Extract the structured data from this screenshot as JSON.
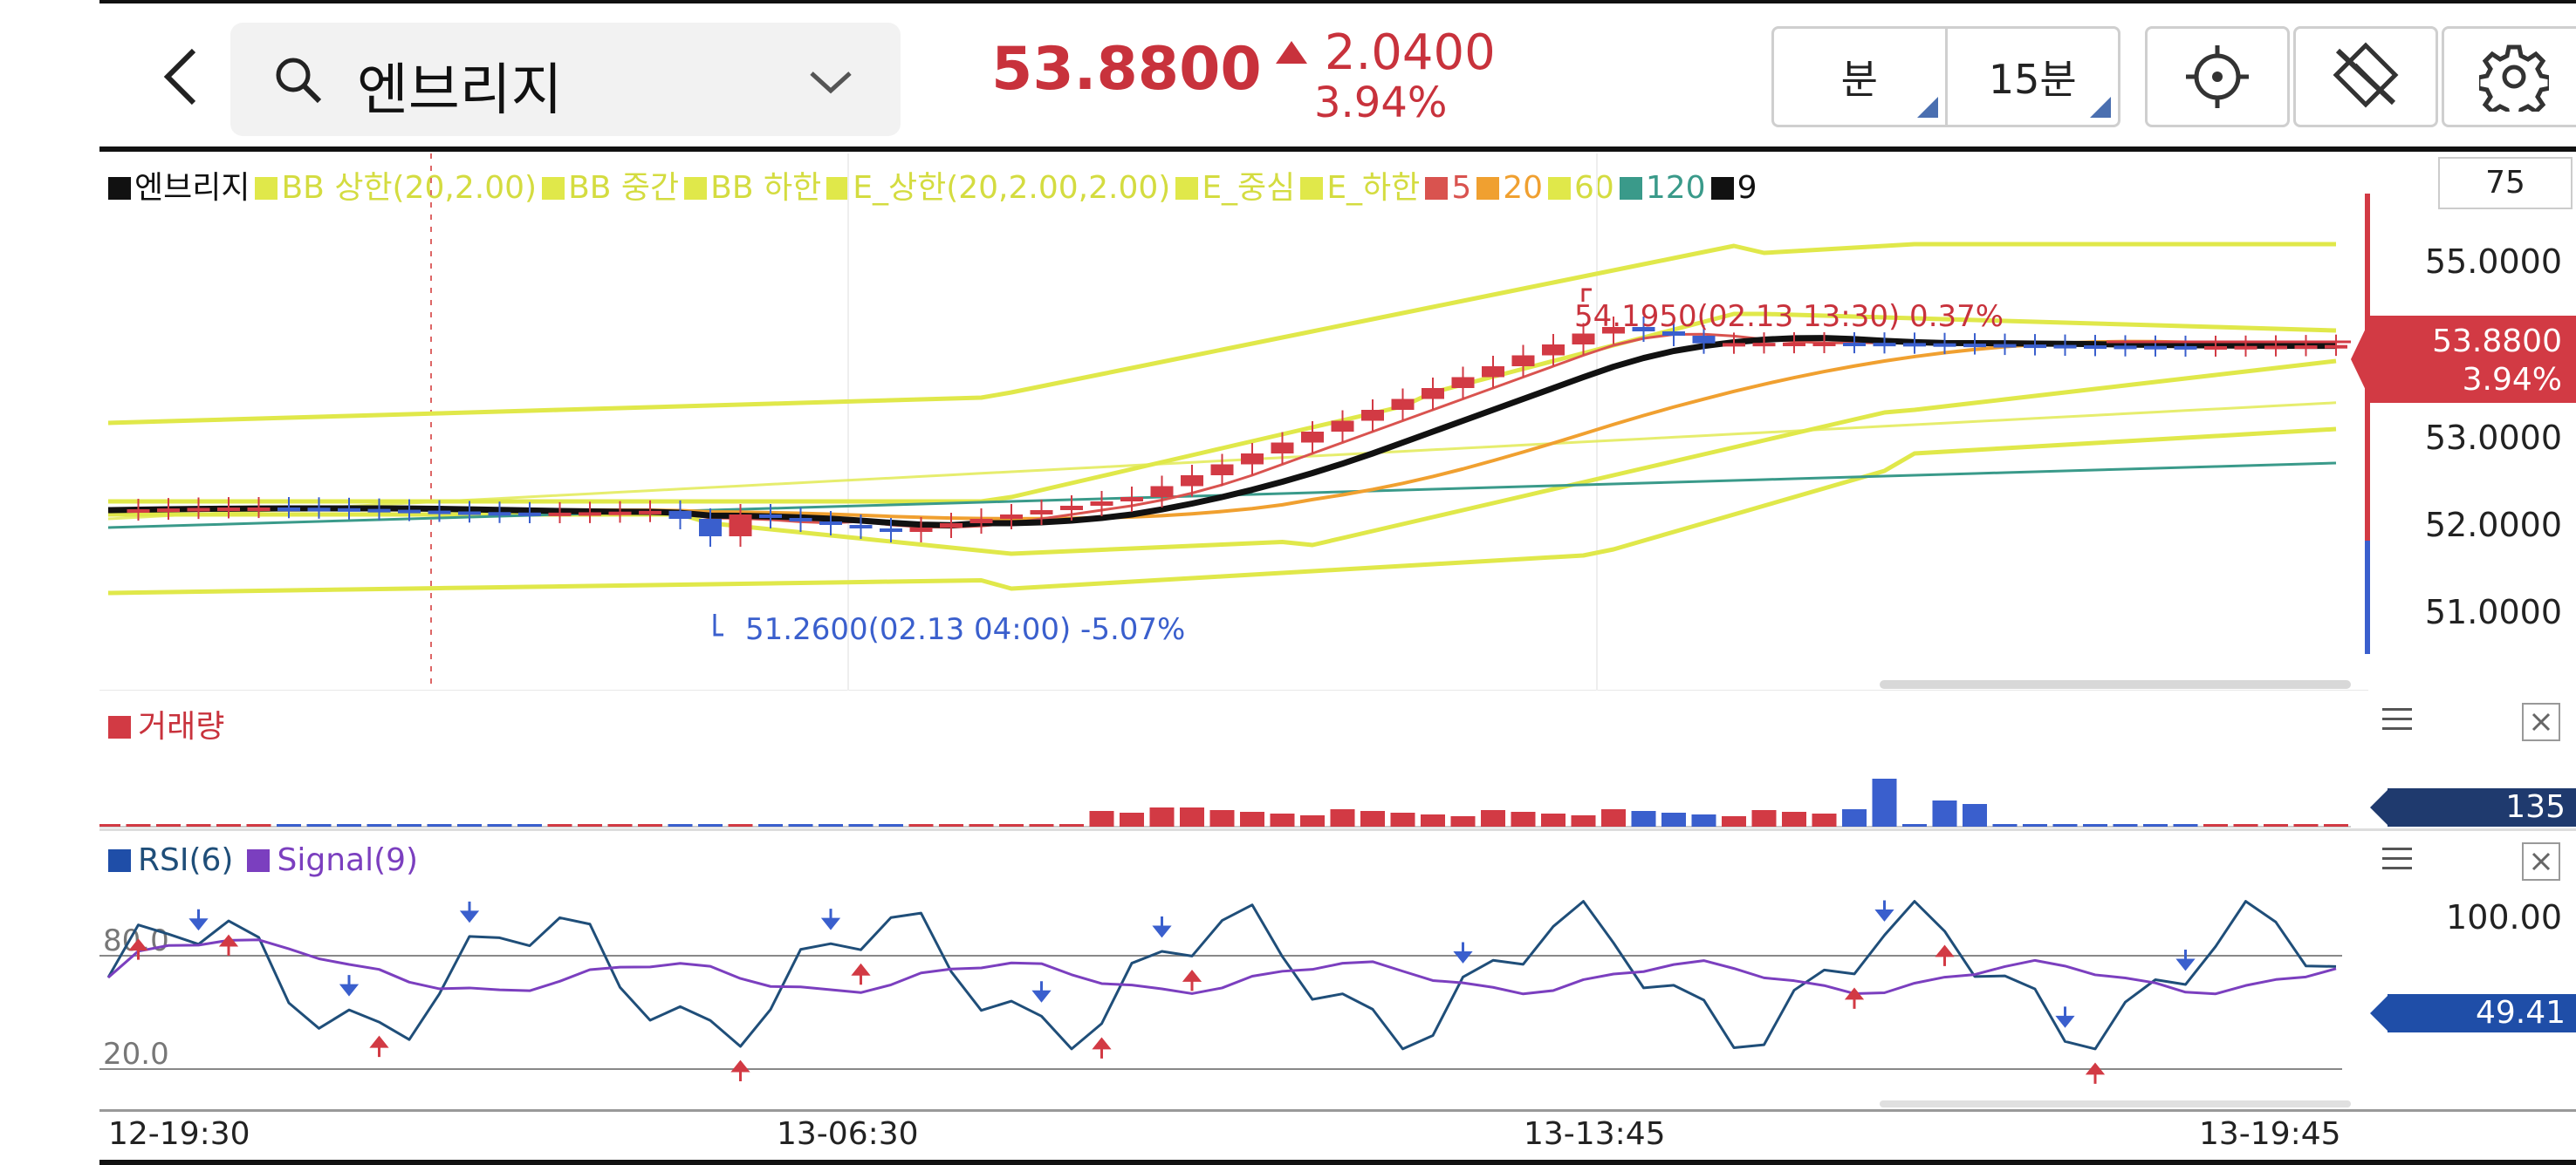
{
  "header": {
    "back_icon": "chevron-left-icon",
    "search_icon": "search-icon",
    "stock_name": "엔브리지",
    "dropdown_icon": "chevron-down-icon",
    "price": "53.8800",
    "change": "2.0400",
    "change_pct": "3.94%",
    "interval_unit": "분",
    "interval_value": "15분",
    "crosshair_icon": "crosshair-icon",
    "drawing_icon": "drawing-tools-off-icon",
    "settings_icon": "gear-icon"
  },
  "legend": [
    {
      "label": "엔브리지",
      "color": "#111111"
    },
    {
      "label": "BB 상한(20,2.00)",
      "color": "#e0e84a"
    },
    {
      "label": "BB 중간",
      "color": "#e0e84a"
    },
    {
      "label": "BB 하한",
      "color": "#e0e84a"
    },
    {
      "label": "E_상한(20,2.00,2.00)",
      "color": "#e0e84a"
    },
    {
      "label": "E_중심",
      "color": "#e0e84a"
    },
    {
      "label": "E_하한",
      "color": "#e0e84a"
    },
    {
      "label": "5",
      "color": "#d9534f"
    },
    {
      "label": "20",
      "color": "#f0a030"
    },
    {
      "label": "60",
      "color": "#e0e84a"
    },
    {
      "label": "120",
      "color": "#3a9a8a"
    },
    {
      "label": "9",
      "color": "#111111"
    }
  ],
  "main_chart": {
    "visible_count": "75",
    "y_ticks": [
      "55.0000",
      "53.0000",
      "52.0000",
      "51.0000"
    ],
    "current_price": "53.8800",
    "current_pct": "3.94%",
    "high_annotation": "54.1950(02.13 13:30) 0.37%",
    "low_annotation": "51.2600(02.13 04:00) -5.07%"
  },
  "volume_pane": {
    "label": "거래량",
    "tag": "135",
    "menu_icon": "hamburger-icon",
    "close_icon": "close-icon"
  },
  "rsi_pane": {
    "label_rsi": "RSI(6)",
    "label_signal": "Signal(9)",
    "tick_top": "100.00",
    "current_value": "49.41",
    "level_high": "80.0",
    "level_low": "20.0",
    "menu_icon": "hamburger-icon",
    "close_icon": "close-icon"
  },
  "x_axis": [
    "12-19:30",
    "13-06:30",
    "13-13:45",
    "13-19:45"
  ],
  "colors": {
    "up": "#d23a44",
    "down": "#3a5fcd",
    "bb": "#e0e84a",
    "ma20": "#f0a030",
    "ma120": "#3a9a8a",
    "rsi": "#1f4e79",
    "signal": "#7b3fbf",
    "volume_tag": "#1f3a6e",
    "rsi_tag": "#1f4ea8"
  }
}
